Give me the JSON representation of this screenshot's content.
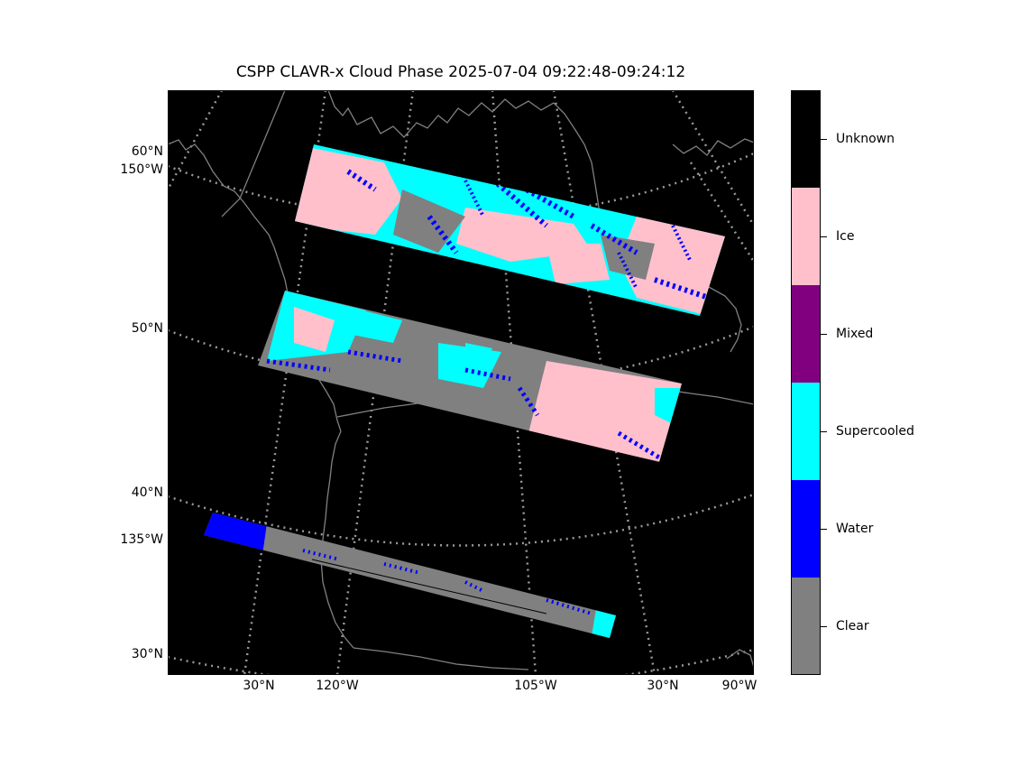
{
  "title": "CSPP CLAVR-x Cloud Phase 2025-07-04 09:22:48-09:24:12",
  "map": {
    "left_labels": [
      "60°N",
      "150°W",
      "50°N",
      "40°N",
      "135°W",
      "30°N"
    ],
    "bottom_labels": [
      "30°N",
      "120°W",
      "105°W",
      "30°N",
      "90°W"
    ],
    "background": "#000000",
    "coastline_color": "#808080",
    "graticule_color": "#999999"
  },
  "colorbar": {
    "categories": [
      {
        "label": "Unknown",
        "color": "#000000"
      },
      {
        "label": "Ice",
        "color": "#ffc0cb"
      },
      {
        "label": "Mixed",
        "color": "#800080"
      },
      {
        "label": "Supercooled",
        "color": "#00ffff"
      },
      {
        "label": "Water",
        "color": "#0000ff"
      },
      {
        "label": "Clear",
        "color": "#808080"
      }
    ]
  },
  "swaths": [
    {
      "name": "swath-north",
      "dominant": [
        "Supercooled",
        "Ice",
        "Water",
        "Clear"
      ]
    },
    {
      "name": "swath-middle",
      "dominant": [
        "Clear",
        "Supercooled",
        "Ice",
        "Water"
      ]
    },
    {
      "name": "swath-south",
      "dominant": [
        "Water",
        "Clear",
        "Supercooled"
      ]
    }
  ]
}
